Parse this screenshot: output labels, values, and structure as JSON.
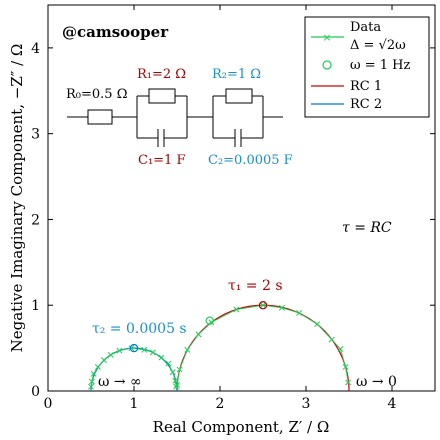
{
  "chart_data": {
    "type": "line",
    "xlabel": "Real Component, Z′ / Ω",
    "ylabel": "Negative Imaginary Component, −Z″ / Ω",
    "xlim": [
      0,
      4.5
    ],
    "ylim": [
      0,
      4.5
    ],
    "xticks": [
      0,
      1,
      2,
      3,
      4
    ],
    "yticks": [
      0,
      1,
      2,
      3,
      4
    ],
    "grid": false,
    "legend_position": "top-right",
    "legend": [
      {
        "label": "Data",
        "label2": "Δ = √2ω"
      },
      {
        "label": "ω = 1 Hz"
      },
      {
        "label": "RC 1"
      },
      {
        "label": "RC 2"
      }
    ],
    "series": [
      {
        "name": "RC 1",
        "center": [
          2.5,
          0
        ],
        "radius": 1.0,
        "color": "#cc0000"
      },
      {
        "name": "RC 2",
        "center": [
          1.0,
          0
        ],
        "radius": 0.5,
        "color": "#0077cc"
      },
      {
        "name": "Data",
        "color": "#22cc55",
        "marker": "x",
        "points": [
          [
            3.49,
            0.1
          ],
          [
            3.46,
            0.28
          ],
          [
            3.4,
            0.49
          ],
          [
            3.3,
            0.6
          ],
          [
            3.13,
            0.78
          ],
          [
            2.92,
            0.91
          ],
          [
            2.72,
            0.97
          ],
          [
            2.5,
            1.0
          ],
          [
            2.19,
            0.95
          ],
          [
            1.9,
            0.8
          ],
          [
            1.75,
            0.66
          ],
          [
            1.62,
            0.48
          ],
          [
            1.53,
            0.25
          ],
          [
            1.5,
            0.07
          ],
          [
            1.49,
            0.05
          ],
          [
            1.48,
            0.12
          ],
          [
            1.45,
            0.22
          ],
          [
            1.4,
            0.32
          ],
          [
            1.32,
            0.39
          ],
          [
            1.22,
            0.45
          ],
          [
            1.12,
            0.48
          ],
          [
            0.97,
            0.5
          ],
          [
            0.83,
            0.47
          ],
          [
            0.73,
            0.42
          ],
          [
            0.65,
            0.36
          ],
          [
            0.58,
            0.28
          ],
          [
            0.53,
            0.2
          ],
          [
            0.51,
            0.11
          ],
          [
            0.5,
            0.05
          ]
        ]
      },
      {
        "name": "ω = 1 Hz",
        "color": "#22cc55",
        "marker": "o",
        "points": [
          [
            1.88,
            0.82
          ]
        ]
      }
    ],
    "markers": [
      {
        "name": "tau1-peak",
        "x": 2.5,
        "y": 1.0,
        "color": "#aa0000"
      },
      {
        "name": "tau2-peak",
        "x": 1.0,
        "y": 0.5,
        "color": "#0077cc"
      }
    ],
    "annotations": {
      "watermark": "@camsooper",
      "tau_rc": "τ = RC",
      "tau1": "τ₁ = 2 s",
      "tau2": "τ₂ = 0.0005 s",
      "omega_inf": "ω → ∞",
      "omega_zero": "ω → 0"
    },
    "circuit": {
      "r0": "R₀=0.5 Ω",
      "r1": "R₁=2 Ω",
      "r2": "R₂=1 Ω",
      "c1": "C₁=1 F",
      "c2": "C₂=0.0005 F",
      "r1_color": "#aa0000",
      "r2_color": "#1a8fd0",
      "c1_color": "#aa0000",
      "c2_color": "#1a8fd0"
    }
  }
}
